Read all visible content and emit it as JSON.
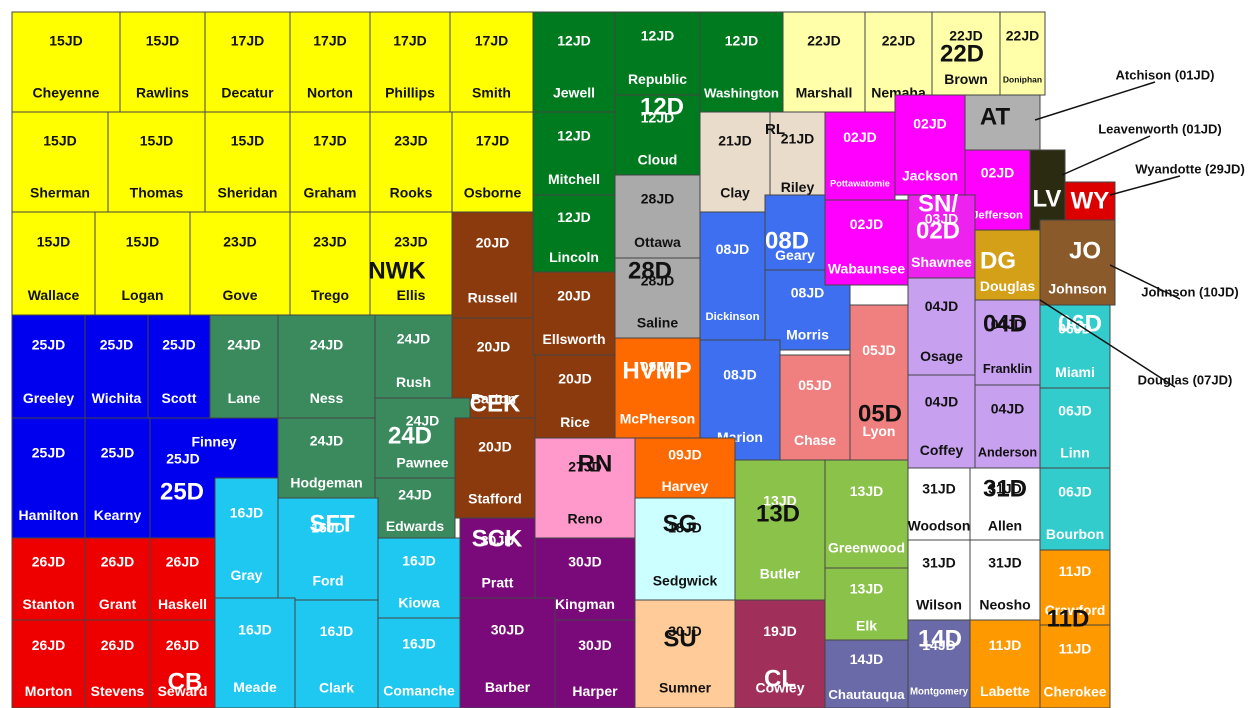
{
  "counties": [
    {
      "name": "Cheyenne",
      "district": "15JD",
      "color": "#ffff00"
    },
    {
      "name": "Rawlins",
      "district": "15JD",
      "color": "#ffff00"
    },
    {
      "name": "Decatur",
      "district": "17JD",
      "color": "#ffff00"
    },
    {
      "name": "Norton",
      "district": "17JD",
      "color": "#ffff00"
    },
    {
      "name": "Phillips",
      "district": "17JD",
      "color": "#ffff00"
    },
    {
      "name": "Smith",
      "district": "17JD",
      "color": "#ffff00"
    },
    {
      "name": "Jewell",
      "district": "12JD",
      "color": "#007a1e"
    },
    {
      "name": "Republic",
      "district": "12JD",
      "color": "#007a1e"
    },
    {
      "name": "Washington",
      "district": "12JD",
      "color": "#007a1e"
    },
    {
      "name": "Marshall",
      "district": "22JD",
      "color": "#ffffaa"
    },
    {
      "name": "Nemaha",
      "district": "22JD",
      "color": "#ffffaa"
    },
    {
      "name": "Brown",
      "district": "22JD",
      "color": "#ffffaa"
    },
    {
      "name": "Doniphan",
      "district": "22JD",
      "color": "#ffffaa"
    },
    {
      "color": "#b0b0b0"
    },
    {
      "name": "Sherman",
      "district": "15JD",
      "color": "#ffff00"
    },
    {
      "name": "Thomas",
      "district": "15JD",
      "color": "#ffff00"
    },
    {
      "name": "Sheridan",
      "district": "15JD",
      "color": "#ffff00"
    },
    {
      "name": "Graham",
      "district": "17JD",
      "color": "#ffff00"
    },
    {
      "name": "Rooks",
      "district": "23JD",
      "color": "#ffff00"
    },
    {
      "name": "Osborne",
      "district": "17JD",
      "color": "#ffff00"
    },
    {
      "name": "Mitchell",
      "district": "12JD",
      "color": "#007a1e"
    },
    {
      "name": "Cloud",
      "district": "12JD",
      "color": "#007a1e"
    },
    {
      "name": "Clay",
      "district": "21JD",
      "color": "#eadccb"
    },
    {
      "name": "Riley",
      "district": "21JD",
      "color": "#eadccb"
    },
    {
      "name": "Pottawatomie",
      "district": "02JD",
      "color": "#ff00ff"
    },
    {
      "name": "Jackson",
      "district": "02JD",
      "color": "#ff00ff"
    },
    {
      "name": "Jefferson",
      "district": "02JD",
      "color": "#ff00ff"
    },
    {
      "color": "#2b2b12"
    },
    {
      "color": "#dd0000"
    },
    {
      "name": "Wallace",
      "district": "15JD",
      "color": "#ffff00"
    },
    {
      "name": "Logan",
      "district": "15JD",
      "color": "#ffff00"
    },
    {
      "name": "Gove",
      "district": "23JD",
      "color": "#ffff00"
    },
    {
      "name": "Trego",
      "district": "23JD",
      "color": "#ffff00"
    },
    {
      "name": "Ellis",
      "district": "23JD",
      "color": "#ffff00"
    },
    {
      "name": "Russell",
      "district": "20JD",
      "color": "#8b3a0e"
    },
    {
      "name": "Lincoln",
      "district": "12JD",
      "color": "#007a1e"
    },
    {
      "name": "Ottawa",
      "district": "28JD",
      "color": "#aaaaaa"
    },
    {
      "name": "Saline",
      "district": "28JD",
      "color": "#aaaaaa"
    },
    {
      "name": "Dickinson",
      "district": "08JD",
      "color": "#3d6ff0"
    },
    {
      "name": "Geary",
      "color": "#3d6ff0"
    },
    {
      "name": "Morris",
      "district": "08JD",
      "color": "#3d6ff0"
    },
    {
      "name": "Wabaunsee",
      "district": "02JD",
      "color": "#ff00ff"
    },
    {
      "name": "Shawnee",
      "district": "03JD",
      "color": "#ee22ee"
    },
    {
      "name": "Douglas",
      "color": "#d4a017"
    },
    {
      "name": "Johnson",
      "color": "#8b5a2b"
    },
    {
      "name": "Greeley",
      "district": "25JD",
      "color": "#0000ee"
    },
    {
      "name": "Wichita",
      "district": "25JD",
      "color": "#0000ee"
    },
    {
      "name": "Scott",
      "district": "25JD",
      "color": "#0000ee"
    },
    {
      "name": "Lane",
      "district": "24JD",
      "color": "#3a8a5e"
    },
    {
      "name": "Ness",
      "district": "24JD",
      "color": "#3a8a5e"
    },
    {
      "name": "Rush",
      "district": "24JD",
      "color": "#3a8a5e"
    },
    {
      "name": "Barton",
      "district": "20JD",
      "color": "#8b3a0e"
    },
    {
      "name": "Ellsworth",
      "district": "20JD",
      "color": "#8b3a0e"
    },
    {
      "name": "Rice",
      "district": "20JD",
      "color": "#8b3a0e"
    },
    {
      "name": "McPherson",
      "district": "09JD",
      "color": "#ff6a00"
    },
    {
      "name": "Marion",
      "district": "08JD",
      "color": "#3d6ff0"
    },
    {
      "name": "Chase",
      "district": "05JD",
      "color": "#f08080"
    },
    {
      "name": "Lyon",
      "district": "05JD",
      "color": "#f08080"
    },
    {
      "name": "Osage",
      "district": "04JD",
      "color": "#c8a0f0"
    },
    {
      "name": "Franklin",
      "district": "04JD",
      "color": "#c8a0f0"
    },
    {
      "name": "Miami",
      "district": "06JD",
      "color": "#33cccc"
    },
    {
      "name": "Hamilton",
      "district": "25JD",
      "color": "#0000ee"
    },
    {
      "name": "Kearny",
      "district": "25JD",
      "color": "#0000ee"
    },
    {
      "name": "Finney",
      "district": "25JD",
      "color": "#0000ee"
    },
    {
      "name": "Hodgeman",
      "district": "24JD",
      "color": "#3a8a5e"
    },
    {
      "name": "Pawnee",
      "district": "24JD",
      "color": "#3a8a5e"
    },
    {
      "name": "Edwards",
      "district": "24JD",
      "color": "#3a8a5e"
    },
    {
      "name": "Stafford",
      "district": "20JD",
      "color": "#8b3a0e"
    },
    {
      "name": "Reno",
      "district": "27JD",
      "color": "#ff99cc"
    },
    {
      "name": "Harvey",
      "district": "09JD",
      "color": "#ff6a00"
    },
    {
      "name": "Butler",
      "district": "13JD",
      "color": "#8bc34a"
    },
    {
      "name": "Greenwood",
      "district": "13JD",
      "color": "#8bc34a"
    },
    {
      "name": "Coffey",
      "district": "04JD",
      "color": "#c8a0f0"
    },
    {
      "name": "Anderson",
      "district": "04JD",
      "color": "#c8a0f0"
    },
    {
      "name": "Linn",
      "district": "06JD",
      "color": "#33cccc"
    },
    {
      "name": "Stanton",
      "district": "26JD",
      "color": "#ee0000"
    },
    {
      "name": "Grant",
      "district": "26JD",
      "color": "#ee0000"
    },
    {
      "name": "Haskell",
      "district": "26JD",
      "color": "#ee0000"
    },
    {
      "name": "Gray",
      "district": "16JD",
      "color": "#1ec8f0"
    },
    {
      "name": "Ford",
      "district": "16JD",
      "color": "#1ec8f0"
    },
    {
      "name": "Kiowa",
      "district": "16JD",
      "color": "#1ec8f0"
    },
    {
      "name": "Pratt",
      "district": "30JD",
      "color": "#7a0a7a"
    },
    {
      "name": "Kingman",
      "district": "30JD",
      "color": "#7a0a7a"
    },
    {
      "name": "Sedgwick",
      "district": "18JD",
      "color": "#ccffff"
    },
    {
      "name": "Woodson",
      "district": "31JD",
      "color": "#ffffff"
    },
    {
      "name": "Allen",
      "district": "31JD",
      "color": "#ffffff"
    },
    {
      "name": "Bourbon",
      "district": "06JD",
      "color": "#33cccc"
    },
    {
      "name": "Elk",
      "district": "13JD",
      "color": "#8bc34a"
    },
    {
      "name": "Wilson",
      "district": "31JD",
      "color": "#ffffff"
    },
    {
      "name": "Neosho",
      "district": "31JD",
      "color": "#ffffff"
    },
    {
      "name": "Crawford",
      "district": "11JD",
      "color": "#ff9900"
    },
    {
      "name": "Morton",
      "district": "26JD",
      "color": "#ee0000"
    },
    {
      "name": "Stevens",
      "district": "26JD",
      "color": "#ee0000"
    },
    {
      "name": "Seward",
      "district": "26JD",
      "color": "#ee0000"
    },
    {
      "name": "Meade",
      "district": "16JD",
      "color": "#1ec8f0"
    },
    {
      "name": "Clark",
      "district": "16JD",
      "color": "#1ec8f0"
    },
    {
      "name": "Comanche",
      "district": "16JD",
      "color": "#1ec8f0"
    },
    {
      "name": "Barber",
      "district": "30JD",
      "color": "#7a0a7a"
    },
    {
      "name": "Harper",
      "district": "30JD",
      "color": "#7a0a7a"
    },
    {
      "name": "Sumner",
      "district": "30JD",
      "color": "#ffcc99"
    },
    {
      "name": "Cowley",
      "district": "19JD",
      "color": "#a0305a"
    },
    {
      "name": "Chautauqua",
      "district": "14JD",
      "color": "#6a6aa8"
    },
    {
      "name": "Montgomery",
      "district": "14JD",
      "color": "#6a6aa8"
    },
    {
      "name": "Labette",
      "district": "11JD",
      "color": "#ff9900"
    },
    {
      "name": "Cherokee",
      "district": "11JD",
      "color": "#ff9900"
    }
  ],
  "district_labels": [
    "NWK",
    "CEK",
    "24D",
    "25D",
    "SFT",
    "SCK",
    "13D",
    "SG",
    "RN",
    "HVMP",
    "28D",
    "08D",
    "12D",
    "22D",
    "AT",
    "LV",
    "WY",
    "SN/",
    "02D",
    "DG",
    "JO",
    "04D",
    "06D",
    "05D",
    "31D",
    "11D",
    "14D",
    "SU",
    "CL",
    "CB",
    "RL"
  ],
  "callouts": [
    "Atchison (01JD)",
    "Leavenworth (01JD)",
    "Wyandotte (29JD)",
    "Johnson (10JD)",
    "Douglas (07JD)"
  ]
}
